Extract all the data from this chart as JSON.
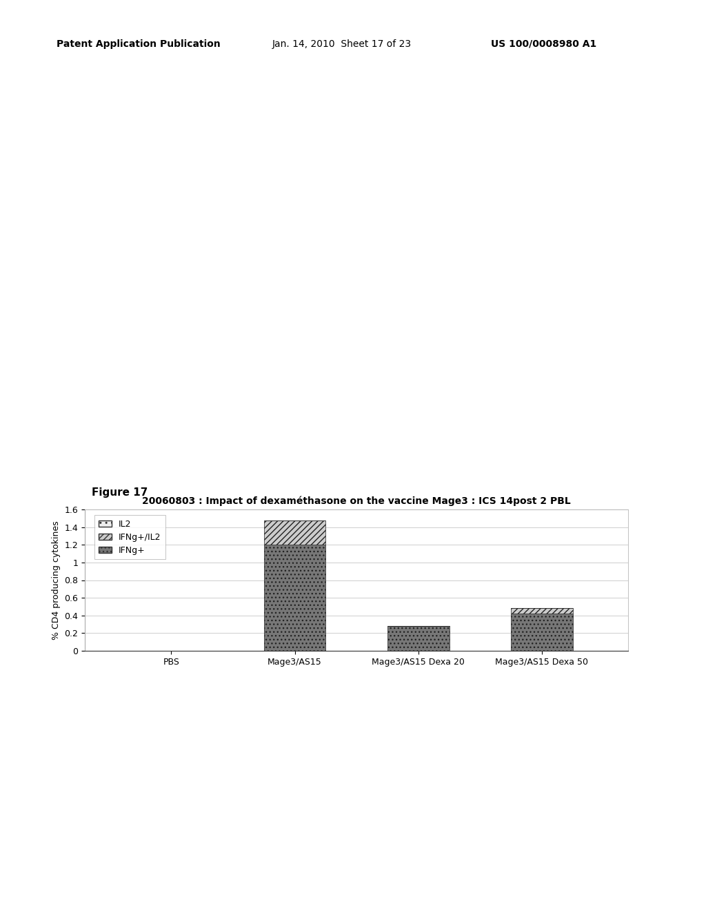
{
  "title": "20060803 : Impact of dexaméthasone on the vaccine Mage3 : ICS 14post 2 PBL",
  "ylabel": "% CD4 producing cytokines",
  "figure_label": "Figure 17",
  "categories": [
    "PBS",
    "Mage3/AS15",
    "Mage3/AS15 Dexa 20",
    "Mage3/AS15 Dexa 50"
  ],
  "IFNg_plus": [
    0.0,
    1.2,
    0.28,
    0.42
  ],
  "IFNg_plus_IL2": [
    0.0,
    0.28,
    0.0,
    0.06
  ],
  "IL2": [
    0.0,
    0.0,
    0.0,
    0.0
  ],
  "ylim": [
    0,
    1.6
  ],
  "yticks": [
    0,
    0.2,
    0.4,
    0.6,
    0.8,
    1.0,
    1.2,
    1.4,
    1.6
  ],
  "background_color": "#ffffff",
  "plot_bg_color": "#ffffff",
  "bar_width": 0.5,
  "grid_color": "#bbbbbb",
  "patent_left": "Patent Application Publication",
  "patent_center": "Jan. 14, 2010  Sheet 17 of 23",
  "patent_right": "US 100/0008980 A1",
  "legend_labels": [
    "IL2",
    "IFNg+/IL2",
    "IFNg+"
  ]
}
